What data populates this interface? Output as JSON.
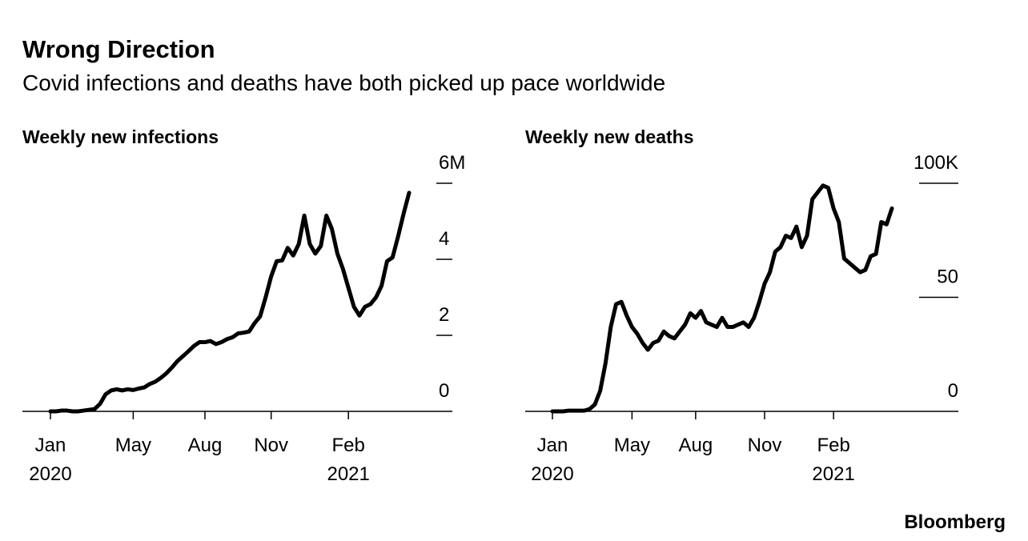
{
  "title": "Wrong Direction",
  "subtitle": "Covid infections and deaths have both picked up pace worldwide",
  "source": "Bloomberg",
  "chart_data": [
    {
      "type": "line",
      "title": "Weekly new infections",
      "color": "#000000",
      "categories": [
        "Jan\n2020",
        null,
        null,
        null,
        null,
        null,
        null,
        null,
        null,
        null,
        null,
        null,
        null,
        null,
        null,
        "May",
        null,
        null,
        null,
        null,
        null,
        null,
        null,
        null,
        null,
        null,
        null,
        null,
        "Aug",
        null,
        null,
        null,
        null,
        null,
        null,
        null,
        null,
        null,
        null,
        null,
        "Nov",
        null,
        null,
        null,
        null,
        null,
        null,
        null,
        null,
        null,
        null,
        null,
        null,
        null,
        "Feb\n2021",
        null,
        null,
        null,
        null,
        null,
        null,
        null,
        null,
        null,
        null,
        null
      ],
      "values": [
        0,
        0,
        0.02,
        0.02,
        0,
        0,
        0.02,
        0.04,
        0.06,
        0.2,
        0.45,
        0.55,
        0.58,
        0.55,
        0.58,
        0.56,
        0.6,
        0.63,
        0.72,
        0.78,
        0.88,
        1.0,
        1.15,
        1.32,
        1.45,
        1.58,
        1.72,
        1.82,
        1.82,
        1.85,
        1.77,
        1.82,
        1.9,
        1.95,
        2.05,
        2.07,
        2.1,
        2.32,
        2.5,
        3.0,
        3.55,
        3.95,
        3.97,
        4.3,
        4.1,
        4.4,
        5.15,
        4.4,
        4.15,
        4.35,
        5.15,
        4.8,
        4.15,
        3.75,
        3.25,
        2.75,
        2.52,
        2.75,
        2.82,
        3.0,
        3.3,
        3.95,
        4.05,
        4.6,
        5.2,
        5.75
      ],
      "ylim": [
        0,
        6
      ],
      "yticks": [
        0,
        2,
        4,
        {
          "value": 6,
          "label": "6M"
        }
      ]
    },
    {
      "type": "line",
      "title": "Weekly new deaths",
      "color": "#000000",
      "categories": [
        "Jan\n2020",
        null,
        null,
        null,
        null,
        null,
        null,
        null,
        null,
        null,
        null,
        null,
        null,
        null,
        null,
        "May",
        null,
        null,
        null,
        null,
        null,
        null,
        null,
        null,
        null,
        null,
        null,
        "Aug",
        null,
        null,
        null,
        null,
        null,
        null,
        null,
        null,
        null,
        null,
        null,
        null,
        "Nov",
        null,
        null,
        null,
        null,
        null,
        null,
        null,
        null,
        null,
        null,
        null,
        null,
        "Feb\n2021",
        null,
        null,
        null,
        null,
        null,
        null,
        null,
        null,
        null,
        null,
        null
      ],
      "values": [
        0,
        0,
        0,
        0.3,
        0.3,
        0.3,
        0.3,
        1,
        3,
        9,
        21,
        37,
        47,
        48,
        42,
        37,
        34,
        30,
        27,
        30,
        31,
        35,
        33,
        32,
        35,
        38,
        43,
        41,
        44,
        39,
        38,
        37,
        41,
        37,
        37,
        38,
        39,
        37,
        41,
        48,
        56,
        61,
        70,
        72,
        77,
        76,
        81,
        72,
        77,
        93,
        96,
        99,
        98,
        89,
        83,
        67,
        65,
        63,
        61,
        62,
        68,
        69,
        83,
        82,
        89
      ],
      "ylim": [
        0,
        100
      ],
      "yticks": [
        0,
        50,
        {
          "value": 100,
          "label": "100K"
        }
      ]
    }
  ]
}
